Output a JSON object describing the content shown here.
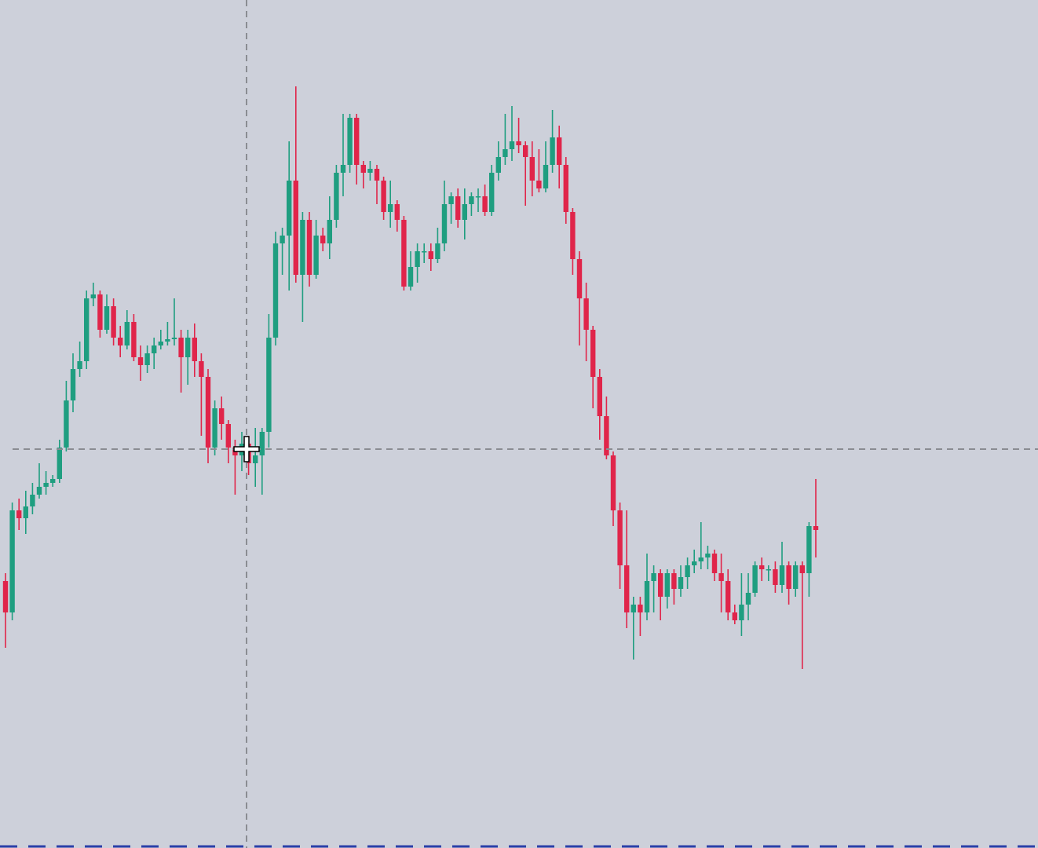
{
  "chart_data": {
    "type": "candlestick",
    "up_color": "#1f9e80",
    "down_color": "#e0254a",
    "ylim": [
      0,
      1080
    ],
    "open": [
      340,
      300,
      430,
      420,
      435,
      450,
      460,
      465,
      470,
      510,
      570,
      610,
      620,
      700,
      705,
      660,
      690,
      650,
      640,
      670,
      625,
      615,
      630,
      640,
      645,
      648,
      650,
      625,
      650,
      620,
      600,
      510,
      560,
      540,
      510,
      500,
      515,
      490,
      500,
      530,
      650,
      770,
      780,
      850,
      730,
      800,
      730,
      780,
      770,
      800,
      860,
      870,
      930,
      870,
      860,
      865,
      850,
      810,
      820,
      800,
      715,
      740,
      760,
      760,
      750,
      770,
      820,
      830,
      800,
      820,
      830,
      830,
      810,
      860,
      880,
      890,
      900,
      895,
      880,
      850,
      840,
      870,
      905,
      870,
      810,
      750,
      700,
      660,
      600,
      550,
      500,
      430,
      360,
      300,
      310,
      300,
      340,
      350,
      320,
      350,
      330,
      345,
      360,
      365,
      370,
      375,
      350,
      340,
      300,
      290,
      310,
      325,
      360,
      355,
      355,
      335,
      360,
      330,
      360,
      350,
      410
    ],
    "high": [
      350,
      440,
      445,
      455,
      465,
      490,
      480,
      475,
      520,
      595,
      630,
      645,
      710,
      720,
      710,
      705,
      700,
      665,
      685,
      680,
      640,
      640,
      650,
      660,
      670,
      700,
      660,
      660,
      668,
      630,
      610,
      570,
      575,
      545,
      520,
      530,
      525,
      535,
      535,
      680,
      785,
      790,
      900,
      970,
      810,
      810,
      800,
      790,
      830,
      870,
      935,
      935,
      935,
      875,
      875,
      870,
      855,
      850,
      825,
      805,
      760,
      770,
      770,
      770,
      790,
      850,
      835,
      840,
      840,
      835,
      840,
      845,
      870,
      900,
      935,
      945,
      930,
      900,
      900,
      890,
      900,
      940,
      920,
      880,
      815,
      760,
      720,
      665,
      610,
      575,
      505,
      440,
      430,
      320,
      320,
      375,
      360,
      355,
      355,
      355,
      360,
      370,
      380,
      415,
      385,
      380,
      375,
      355,
      310,
      350,
      350,
      365,
      370,
      360,
      365,
      390,
      365,
      365,
      365,
      415,
      470
    ],
    "low": [
      255,
      290,
      405,
      400,
      425,
      445,
      450,
      460,
      465,
      505,
      555,
      600,
      610,
      690,
      650,
      655,
      640,
      625,
      635,
      620,
      595,
      605,
      610,
      635,
      640,
      640,
      580,
      590,
      600,
      525,
      490,
      500,
      520,
      490,
      450,
      480,
      475,
      460,
      450,
      510,
      640,
      730,
      710,
      720,
      670,
      715,
      725,
      760,
      750,
      790,
      830,
      860,
      845,
      840,
      850,
      820,
      800,
      790,
      785,
      710,
      710,
      720,
      745,
      735,
      745,
      760,
      795,
      790,
      775,
      805,
      810,
      805,
      805,
      850,
      870,
      875,
      885,
      818,
      830,
      835,
      835,
      860,
      840,
      795,
      730,
      640,
      620,
      560,
      520,
      495,
      410,
      330,
      280,
      240,
      270,
      290,
      300,
      290,
      305,
      310,
      320,
      330,
      350,
      355,
      355,
      340,
      300,
      290,
      285,
      270,
      290,
      320,
      340,
      340,
      325,
      325,
      310,
      320,
      228,
      320,
      370
    ],
    "close": [
      300,
      430,
      420,
      435,
      450,
      460,
      465,
      470,
      510,
      570,
      610,
      620,
      700,
      705,
      660,
      690,
      650,
      640,
      670,
      625,
      615,
      630,
      640,
      645,
      648,
      650,
      625,
      650,
      620,
      600,
      510,
      560,
      540,
      510,
      500,
      515,
      490,
      500,
      530,
      650,
      770,
      780,
      850,
      730,
      800,
      730,
      780,
      770,
      800,
      860,
      870,
      930,
      870,
      860,
      865,
      850,
      810,
      820,
      800,
      715,
      740,
      760,
      760,
      750,
      770,
      820,
      830,
      800,
      820,
      830,
      830,
      810,
      860,
      880,
      890,
      900,
      895,
      880,
      850,
      840,
      870,
      905,
      870,
      810,
      750,
      700,
      660,
      600,
      550,
      500,
      430,
      360,
      300,
      310,
      300,
      340,
      350,
      320,
      350,
      330,
      345,
      360,
      365,
      370,
      375,
      350,
      340,
      300,
      290,
      310,
      325,
      360,
      355,
      355,
      335,
      360,
      330,
      360,
      350,
      410,
      405
    ]
  }
}
